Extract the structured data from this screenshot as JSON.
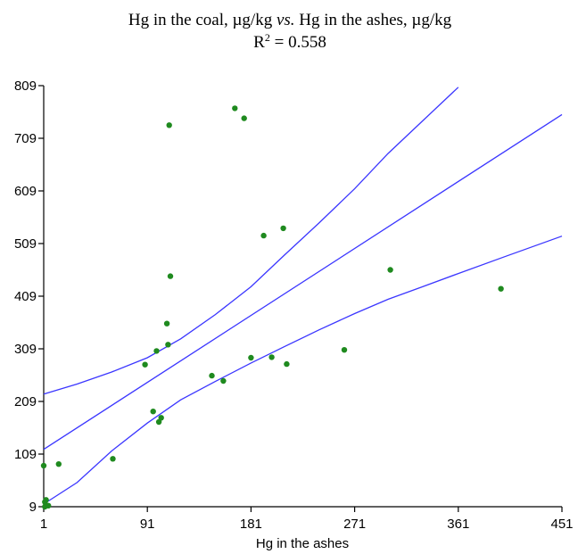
{
  "chart_data": {
    "type": "scatter",
    "title": "Hg in the coal, µg/kg vs. Hg in the ashes, µg/kg",
    "title_parts": {
      "prefix": "Hg in the coal, µg/kg ",
      "vs": "vs.",
      "suffix": " Hg in the ashes, µg/kg"
    },
    "subtitle_parts": {
      "r": "R",
      "sup": "2",
      "value": " = 0.558"
    },
    "xlabel": "Hg in the ashes",
    "ylabel": "",
    "xlim": [
      1,
      451
    ],
    "ylim": [
      9,
      809
    ],
    "xticks": [
      1,
      91,
      181,
      271,
      361,
      451
    ],
    "yticks": [
      9,
      109,
      209,
      309,
      409,
      509,
      609,
      709,
      809
    ],
    "grid": false,
    "colors": {
      "points": "#1f8a1f",
      "lines": "#3b36ff"
    },
    "series": [
      {
        "type": "scatter",
        "points": [
          [
            1,
            87
          ],
          [
            2,
            18
          ],
          [
            3,
            22
          ],
          [
            3,
            12
          ],
          [
            2,
            9
          ],
          [
            5,
            11
          ],
          [
            14,
            90
          ],
          [
            61,
            100
          ],
          [
            89,
            279
          ],
          [
            96,
            190
          ],
          [
            99,
            305
          ],
          [
            101,
            170
          ],
          [
            103,
            178
          ],
          [
            108,
            357
          ],
          [
            109,
            317
          ],
          [
            110,
            734
          ],
          [
            111,
            447
          ],
          [
            147,
            258
          ],
          [
            157,
            248
          ],
          [
            167,
            766
          ],
          [
            175,
            747
          ],
          [
            181,
            292
          ],
          [
            192,
            524
          ],
          [
            199,
            293
          ],
          [
            209,
            538
          ],
          [
            212,
            280
          ],
          [
            262,
            307
          ],
          [
            302,
            459
          ],
          [
            398,
            423
          ]
        ]
      },
      {
        "type": "line",
        "role": "fit",
        "points": [
          [
            1,
            118
          ],
          [
            451,
            754
          ]
        ]
      },
      {
        "type": "line",
        "role": "upper-band",
        "points": [
          [
            1,
            223
          ],
          [
            30,
            242
          ],
          [
            60,
            265
          ],
          [
            91,
            292
          ],
          [
            120,
            328
          ],
          [
            150,
            374
          ],
          [
            181,
            427
          ],
          [
            210,
            487
          ],
          [
            240,
            548
          ],
          [
            271,
            613
          ],
          [
            300,
            680
          ],
          [
            330,
            742
          ],
          [
            361,
            806
          ]
        ]
      },
      {
        "type": "line",
        "role": "lower-band",
        "points": [
          [
            1,
            14
          ],
          [
            30,
            55
          ],
          [
            60,
            115
          ],
          [
            91,
            168
          ],
          [
            120,
            212
          ],
          [
            150,
            247
          ],
          [
            181,
            282
          ],
          [
            210,
            313
          ],
          [
            240,
            345
          ],
          [
            271,
            376
          ],
          [
            300,
            403
          ],
          [
            330,
            427
          ],
          [
            361,
            452
          ],
          [
            400,
            483
          ],
          [
            451,
            523
          ]
        ]
      }
    ]
  }
}
